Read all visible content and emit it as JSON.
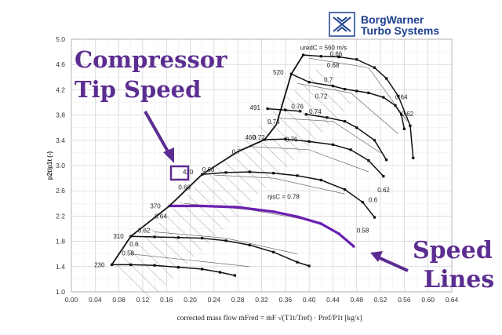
{
  "brand": {
    "line1": "BorgWarner",
    "line2": "Turbo Systems"
  },
  "callouts": {
    "tip_speed": [
      "Compressor",
      "Tip Speed"
    ],
    "speed_lines": [
      "Speed",
      "Lines"
    ]
  },
  "accent_color": "#5c2d91",
  "chart_data": {
    "type": "line",
    "title": "",
    "xlabel": "corrected mass flow   ṁFred = ṁF √(T1t/Tref) · Pref/P1t  [kg/s]",
    "ylabel": "p2t/p1t (-)",
    "xlim": [
      0.0,
      0.64
    ],
    "ylim": [
      1.0,
      5.0
    ],
    "x_ticks": [
      "0.00",
      "0.04",
      "0.08",
      "0.12",
      "0.16",
      "0.20",
      "0.24",
      "0.28",
      "0.32",
      "0.36",
      "0.40",
      "0.44",
      "0.48",
      "0.52",
      "0.56",
      "0.60",
      "0.64"
    ],
    "y_ticks": [
      "1.0",
      "1.4",
      "1.8",
      "2.2",
      "2.6",
      "3.0",
      "3.4",
      "3.8",
      "4.2",
      "4.6",
      "5.0"
    ],
    "grid": true,
    "speed_line_header": "uredC = 560 m/s",
    "efficiency_header": "ηisC = 0.78",
    "series": [
      {
        "name": "230",
        "points": [
          [
            0.068,
            1.43
          ],
          [
            0.1,
            1.43
          ],
          [
            0.14,
            1.42
          ],
          [
            0.18,
            1.39
          ],
          [
            0.22,
            1.36
          ],
          [
            0.25,
            1.31
          ],
          [
            0.275,
            1.26
          ]
        ]
      },
      {
        "name": "310",
        "points": [
          [
            0.1,
            1.88
          ],
          [
            0.14,
            1.87
          ],
          [
            0.18,
            1.86
          ],
          [
            0.22,
            1.85
          ],
          [
            0.26,
            1.81
          ],
          [
            0.3,
            1.74
          ],
          [
            0.34,
            1.63
          ],
          [
            0.38,
            1.47
          ],
          [
            0.4,
            1.41
          ]
        ]
      },
      {
        "name": "370",
        "points": [
          [
            0.165,
            2.36
          ],
          [
            0.22,
            2.36
          ],
          [
            0.28,
            2.34
          ],
          [
            0.34,
            2.27
          ],
          [
            0.38,
            2.19
          ],
          [
            0.42,
            2.08
          ],
          [
            0.45,
            1.92
          ],
          [
            0.475,
            1.72
          ]
        ]
      },
      {
        "name": "420",
        "points": [
          [
            0.22,
            2.86
          ],
          [
            0.26,
            2.89
          ],
          [
            0.3,
            2.9
          ],
          [
            0.34,
            2.88
          ],
          [
            0.38,
            2.84
          ],
          [
            0.42,
            2.77
          ],
          [
            0.46,
            2.62
          ],
          [
            0.49,
            2.42
          ],
          [
            0.51,
            2.18
          ]
        ]
      },
      {
        "name": "460",
        "points": [
          [
            0.325,
            3.41
          ],
          [
            0.36,
            3.42
          ],
          [
            0.4,
            3.38
          ],
          [
            0.44,
            3.33
          ],
          [
            0.47,
            3.25
          ],
          [
            0.5,
            3.08
          ],
          [
            0.525,
            2.83
          ]
        ]
      },
      {
        "name": "491",
        "points": [
          [
            0.33,
            3.9
          ],
          [
            0.36,
            3.88
          ],
          [
            0.385,
            3.86
          ]
        ]
      },
      {
        "name": "491b",
        "points": [
          [
            0.395,
            3.81
          ],
          [
            0.43,
            3.76
          ],
          [
            0.46,
            3.7
          ],
          [
            0.48,
            3.6
          ],
          [
            0.51,
            3.4
          ],
          [
            0.53,
            3.09
          ]
        ]
      },
      {
        "name": "520",
        "points": [
          [
            0.37,
            4.45
          ],
          [
            0.4,
            4.32
          ],
          [
            0.44,
            4.26
          ],
          [
            0.46,
            4.21
          ],
          [
            0.48,
            4.18
          ],
          [
            0.5,
            4.15
          ],
          [
            0.525,
            4.08
          ],
          [
            0.545,
            3.95
          ],
          [
            0.555,
            3.81
          ],
          [
            0.56,
            3.58
          ]
        ]
      },
      {
        "name": "560",
        "points": [
          [
            0.39,
            4.75
          ],
          [
            0.42,
            4.73
          ],
          [
            0.45,
            4.72
          ],
          [
            0.48,
            4.68
          ],
          [
            0.51,
            4.55
          ],
          [
            0.53,
            4.38
          ],
          [
            0.55,
            4.1
          ],
          [
            0.57,
            3.63
          ],
          [
            0.575,
            3.12
          ]
        ]
      },
      {
        "name": "surge",
        "points": [
          [
            0.068,
            1.43
          ],
          [
            0.1,
            1.88
          ],
          [
            0.165,
            2.36
          ],
          [
            0.22,
            2.86
          ],
          [
            0.28,
            3.22
          ],
          [
            0.325,
            3.41
          ],
          [
            0.345,
            3.65
          ],
          [
            0.37,
            4.45
          ],
          [
            0.39,
            4.75
          ]
        ]
      }
    ],
    "efficiency_labels": [
      "0.58",
      "0.6",
      "0.62",
      "0.64",
      "0.66",
      "0.68",
      "0.7",
      "0.72",
      "0.74",
      "0.76",
      "0.78",
      "0.76",
      "0.74",
      "0.72",
      "0.7",
      "0.68",
      "0.66",
      "0.64",
      "0.62",
      "0.6",
      "0.58"
    ],
    "speed_labels": [
      "230",
      "310",
      "370",
      "420",
      "460",
      "491",
      "520"
    ],
    "highlight_line": "370"
  }
}
